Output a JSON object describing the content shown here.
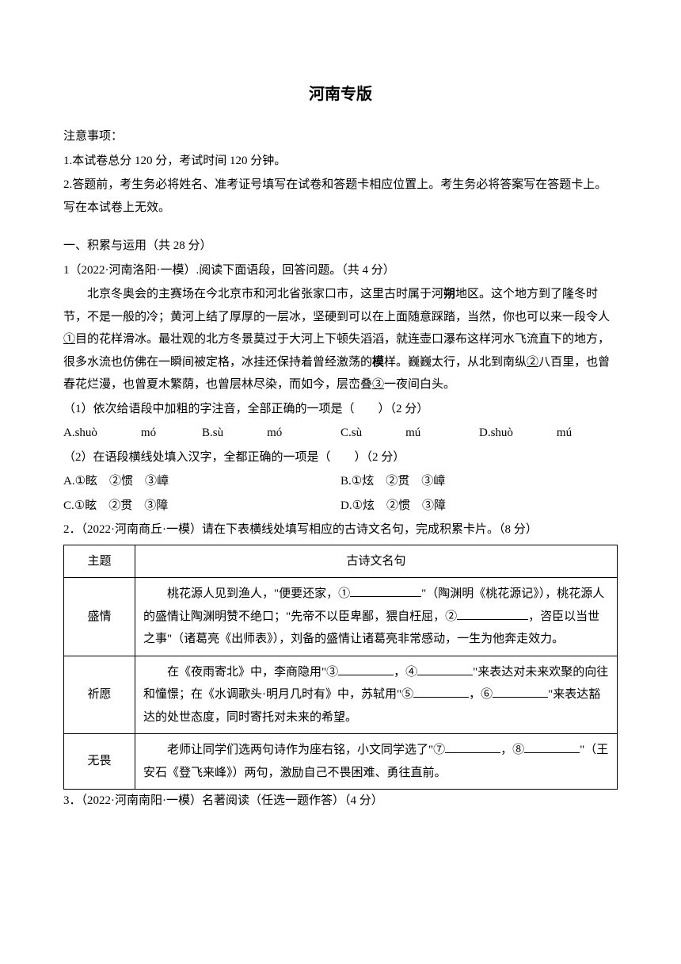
{
  "title": "河南专版",
  "notice_header": "注意事项：",
  "notice_1": "1.本试卷总分 120 分，考试时间 120 分钟。",
  "notice_2": "2.答题前，考生务必将姓名、准考证号填写在试卷和答题卡相应位置上。考生务必将答案写在答题卡上。写在本试卷上无效。",
  "section1_header": "一、积累与运用（共 28 分）",
  "q1_intro": "1（2022·河南洛阳·一模）.阅读下面语段，回答问题。（共 4 分）",
  "passage_seg1": "北京冬奥会的主赛场在今北京市和河北省张家口市，这里古时属于河",
  "bold_shuo": "朔",
  "passage_seg2": "地区。这个地方到了隆冬时节，不是一般的冷；黄河上结了厚厚的一层冰，坚硬到可以在上面随意踩踏，当然，你也可以来一段令人",
  "underline_1": "①",
  "passage_seg3": "目的花样滑冰。最壮观的北方冬景莫过于大河上下顿失滔滔，就连壶口瀑布这样河水飞流直下的地方，很多水流也仿佛在一瞬间被定格，冰挂还保持着曾经激荡的",
  "bold_mo": "模",
  "passage_seg4": "样。巍巍太行，从北到南纵",
  "underline_2": "②",
  "passage_seg5": "八百里，也曾春花烂漫，也曾夏木繁荫，也曾层林尽染，而如今，层峦叠",
  "underline_3": "③",
  "passage_seg6": "一夜间白头。",
  "q1_1": "（1）依次给语段中加粗的字注音，全部正确的一项是（　　）（2 分）",
  "optA1": "A.shuò",
  "optA1b": "mó",
  "optB1": "B.sù",
  "optB1b": "mó",
  "optC1": "C.sù",
  "optC1b": "mú",
  "optD1": "D.shuò",
  "optD1b": "mú",
  "q1_2": "（2）在语段横线处填入汉字，全都正确的一项是（　　）（2 分）",
  "opt2A": "A.①眩　②惯　③嶂",
  "opt2B": "B.①炫　②贯　③嶂",
  "opt2C": "C.①眩　②贯　③障",
  "opt2D": "D.①炫　②惯　③障",
  "q2_intro": "2．（2022·河南商丘·一模）请在下表横线处填写相应的古诗文名句，完成积累卡片。（8 分）",
  "table": {
    "header_theme": "主题",
    "header_content": "古诗文名句",
    "row1_theme": "盛情",
    "row1_seg1": "桃花源人见到渔人，\"便要还家，①",
    "row1_seg2": "\"（陶渊明《桃花源记》），桃花源人的盛情让陶渊明赞不绝口；\"先帝不以臣卑鄙，猥自枉屈，②",
    "row1_seg3": "，咨臣以当世之事\"（诸葛亮《出师表》），刘备的盛情让诸葛亮非常感动，一生为他奔走效力。",
    "row2_theme": "祈愿",
    "row2_seg1": "在《夜雨寄北》中，李商隐用\"③",
    "row2_seg2": "，④",
    "row2_seg3": "\"来表达对未来欢聚的向往和憧憬；在《水调歌头·明月几时有》中，苏轼用\"⑤",
    "row2_seg4": "，⑥",
    "row2_seg5": "\"来表达豁达的处世态度，同时寄托对未来的希望。",
    "row3_theme": "无畏",
    "row3_seg1": "老师让同学们选两句诗作为座右铭，小文同学选了\"⑦",
    "row3_seg2": "，⑧",
    "row3_seg3": "\"（王安石《登飞来峰》）两句，激励自己不畏困难、勇往直前。"
  },
  "q3_intro": "3．（2022·河南南阳·一模）名著阅读（任选一题作答）（4 分）"
}
